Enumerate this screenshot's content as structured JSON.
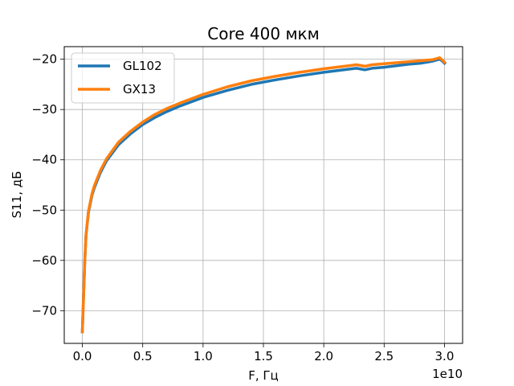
{
  "chart_data": {
    "type": "line",
    "title": "Core 400 мкм",
    "xlabel": "F, Гц",
    "ylabel": "S11, дБ",
    "x_offset_text": "1e10",
    "xlim": [
      -0.15,
      3.15
    ],
    "ylim": [
      -76.5,
      -17.5
    ],
    "x_ticks": [
      0.0,
      0.5,
      1.0,
      1.5,
      2.0,
      2.5,
      3.0
    ],
    "x_tick_labels": [
      "0.0",
      "0.5",
      "1.0",
      "1.5",
      "2.0",
      "2.5",
      "3.0"
    ],
    "y_ticks": [
      -70,
      -60,
      -50,
      -40,
      -30,
      -20
    ],
    "y_tick_labels": [
      "−70",
      "−60",
      "−50",
      "−40",
      "−30",
      "−20"
    ],
    "grid": true,
    "legend_position": "top-left",
    "series": [
      {
        "name": "GL102",
        "color": "#1f77b4",
        "x": [
          0.0,
          0.02,
          0.03,
          0.05,
          0.08,
          0.1,
          0.15,
          0.2,
          0.3,
          0.4,
          0.5,
          0.6,
          0.7,
          0.8,
          1.0,
          1.2,
          1.4,
          1.6,
          1.8,
          2.0,
          2.2,
          2.27,
          2.34,
          2.4,
          2.5,
          2.6,
          2.7,
          2.8,
          2.9,
          2.96,
          2.98,
          3.0
        ],
        "y": [
          -74.2,
          -60,
          -55,
          -50.5,
          -47,
          -45.5,
          -42.5,
          -40.2,
          -37,
          -34.8,
          -33,
          -31.6,
          -30.4,
          -29.4,
          -27.6,
          -26.2,
          -25,
          -24.1,
          -23.3,
          -22.6,
          -22,
          -21.8,
          -22.1,
          -21.8,
          -21.6,
          -21.3,
          -21,
          -20.8,
          -20.4,
          -20,
          -20.3,
          -20.8
        ]
      },
      {
        "name": "GX13",
        "color": "#ff7f0e",
        "x": [
          0.0,
          0.02,
          0.03,
          0.05,
          0.08,
          0.1,
          0.15,
          0.2,
          0.3,
          0.4,
          0.5,
          0.6,
          0.7,
          0.8,
          1.0,
          1.2,
          1.4,
          1.6,
          1.8,
          2.0,
          2.2,
          2.27,
          2.34,
          2.4,
          2.5,
          2.6,
          2.7,
          2.8,
          2.9,
          2.96,
          2.98,
          3.0
        ],
        "y": [
          -74.2,
          -60,
          -55,
          -50.3,
          -46.7,
          -45.1,
          -42.1,
          -39.8,
          -36.5,
          -34.3,
          -32.5,
          -31,
          -29.8,
          -28.8,
          -27,
          -25.5,
          -24.3,
          -23.4,
          -22.6,
          -21.9,
          -21.3,
          -21.1,
          -21.4,
          -21.1,
          -20.9,
          -20.7,
          -20.5,
          -20.3,
          -20.1,
          -19.7,
          -20.1,
          -20.6
        ]
      }
    ]
  }
}
